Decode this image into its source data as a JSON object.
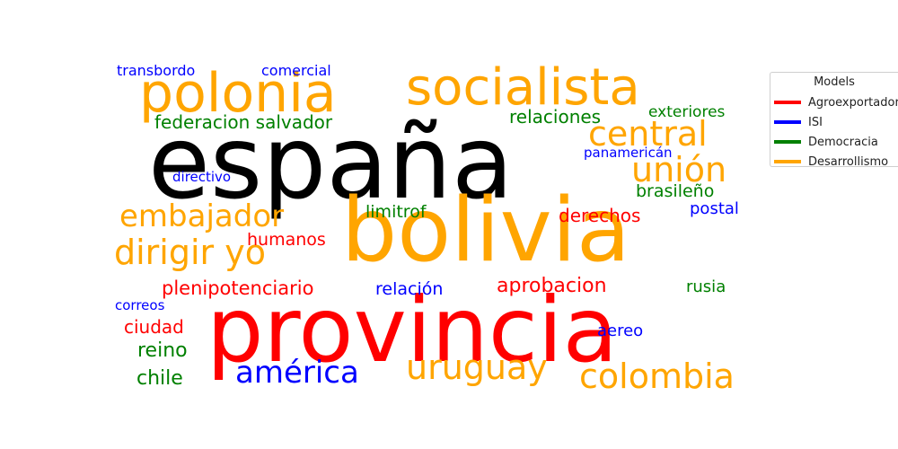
{
  "legend": {
    "title": "Models",
    "items": [
      {
        "label": "Agroexportador",
        "color": "#ff0000"
      },
      {
        "label": "ISI",
        "color": "#0000ff"
      },
      {
        "label": "Democracia",
        "color": "#008000"
      },
      {
        "label": "Desarrollismo",
        "color": "#ffa500"
      }
    ]
  },
  "words": [
    {
      "text": "españa",
      "color": "#000000"
    },
    {
      "text": "bolivia",
      "color": "#ffa500"
    },
    {
      "text": "provincia",
      "color": "#ff0000"
    },
    {
      "text": "polonia",
      "color": "#ffa500"
    },
    {
      "text": "socialista",
      "color": "#ffa500"
    },
    {
      "text": "central",
      "color": "#ffa500"
    },
    {
      "text": "unión",
      "color": "#ffa500"
    },
    {
      "text": "embajador",
      "color": "#ffa500"
    },
    {
      "text": "dirigir yo",
      "color": "#ffa500"
    },
    {
      "text": "uruguay",
      "color": "#ffa500"
    },
    {
      "text": "colombia",
      "color": "#ffa500"
    },
    {
      "text": "américa",
      "color": "#0000ff"
    },
    {
      "text": "federacion salvador",
      "color": "#008000"
    },
    {
      "text": "relaciones",
      "color": "#008000"
    },
    {
      "text": "exteriores",
      "color": "#008000"
    },
    {
      "text": "brasileño",
      "color": "#008000"
    },
    {
      "text": "limitrof",
      "color": "#008000"
    },
    {
      "text": "reino",
      "color": "#008000"
    },
    {
      "text": "chile",
      "color": "#008000"
    },
    {
      "text": "rusia",
      "color": "#008000"
    },
    {
      "text": "aprobacion",
      "color": "#ff0000"
    },
    {
      "text": "plenipotenciario",
      "color": "#ff0000"
    },
    {
      "text": "humanos",
      "color": "#ff0000"
    },
    {
      "text": "derechos",
      "color": "#ff0000"
    },
    {
      "text": "ciudad",
      "color": "#ff0000"
    },
    {
      "text": "transbordo",
      "color": "#0000ff"
    },
    {
      "text": "comercial",
      "color": "#0000ff"
    },
    {
      "text": "directivo",
      "color": "#0000ff"
    },
    {
      "text": "panamericán",
      "color": "#0000ff"
    },
    {
      "text": "postal",
      "color": "#0000ff"
    },
    {
      "text": "relación",
      "color": "#0000ff"
    },
    {
      "text": "correos",
      "color": "#0000ff"
    },
    {
      "text": "aereo",
      "color": "#0000ff"
    }
  ]
}
